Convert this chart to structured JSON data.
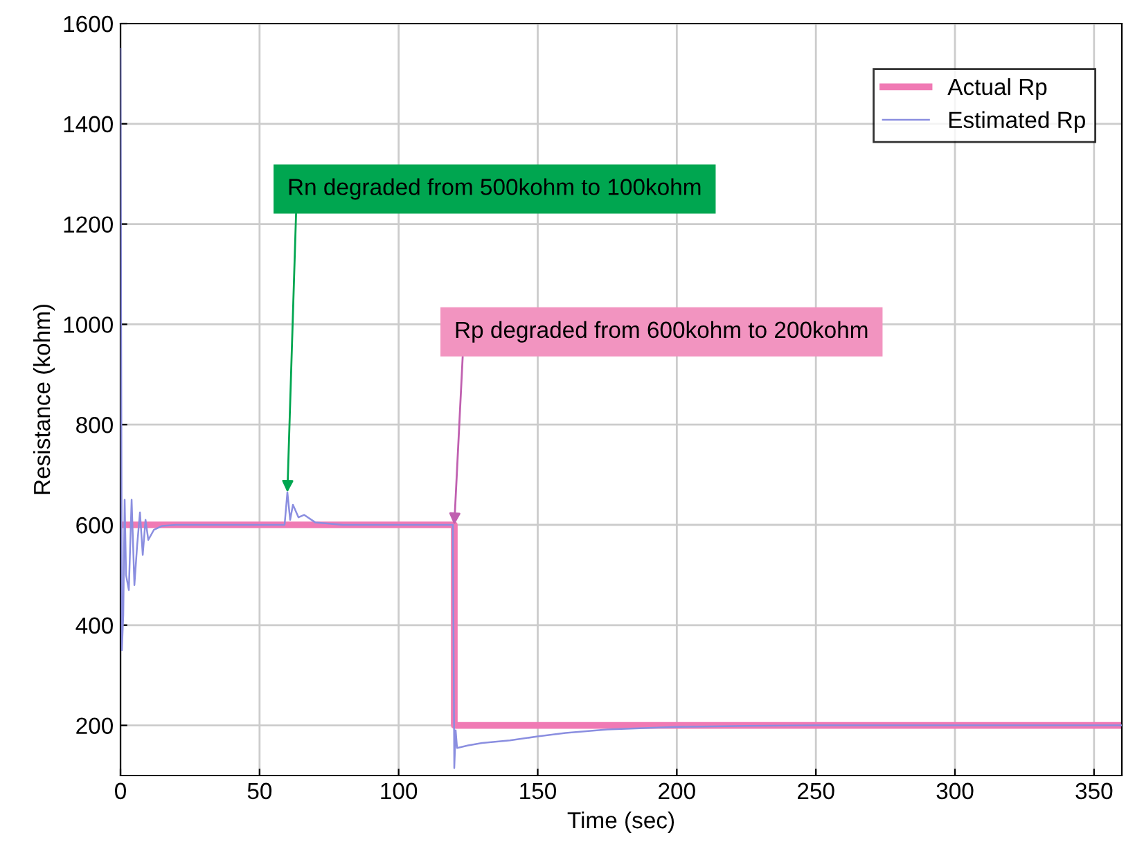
{
  "chart_data": {
    "type": "line",
    "xlabel": "Time (sec)",
    "ylabel": "Resistance (kohm)",
    "xlim": [
      0,
      360
    ],
    "ylim": [
      100,
      1600
    ],
    "xticks": [
      0,
      50,
      100,
      150,
      200,
      250,
      300,
      350
    ],
    "yticks": [
      200,
      400,
      600,
      800,
      1000,
      1200,
      1400,
      1600
    ],
    "grid": true,
    "legend": "top right",
    "series": [
      {
        "name": "Actual Rp",
        "type": "step",
        "color": "#f07ab4",
        "x": [
          0,
          120,
          360
        ],
        "values": [
          600,
          200,
          200
        ]
      },
      {
        "name": "Estimated Rp",
        "color": "#8a8ee0",
        "x": [
          0,
          0.5,
          1,
          1.5,
          2,
          3,
          4,
          5,
          6,
          7,
          8,
          9,
          10,
          12,
          15,
          20,
          40,
          59,
          60,
          61,
          62,
          64,
          66,
          70,
          80,
          100,
          119.5,
          120,
          120.5,
          121,
          125,
          130,
          140,
          150,
          160,
          175,
          200,
          225,
          250,
          300,
          360
        ],
        "values": [
          1550,
          350,
          420,
          650,
          500,
          470,
          650,
          480,
          560,
          625,
          540,
          610,
          570,
          590,
          598,
          600,
          600,
          600,
          665,
          610,
          640,
          615,
          620,
          605,
          600,
          600,
          600,
          115,
          190,
          155,
          160,
          165,
          170,
          178,
          185,
          192,
          197,
          199,
          200,
          200,
          200
        ]
      }
    ],
    "annotations": [
      {
        "text": "Rn degraded from 500kohm to 100kohm",
        "x": 60,
        "y": 665
      },
      {
        "text": "Rp degraded from 600kohm to 200kohm",
        "x": 120,
        "y": 600
      }
    ]
  }
}
